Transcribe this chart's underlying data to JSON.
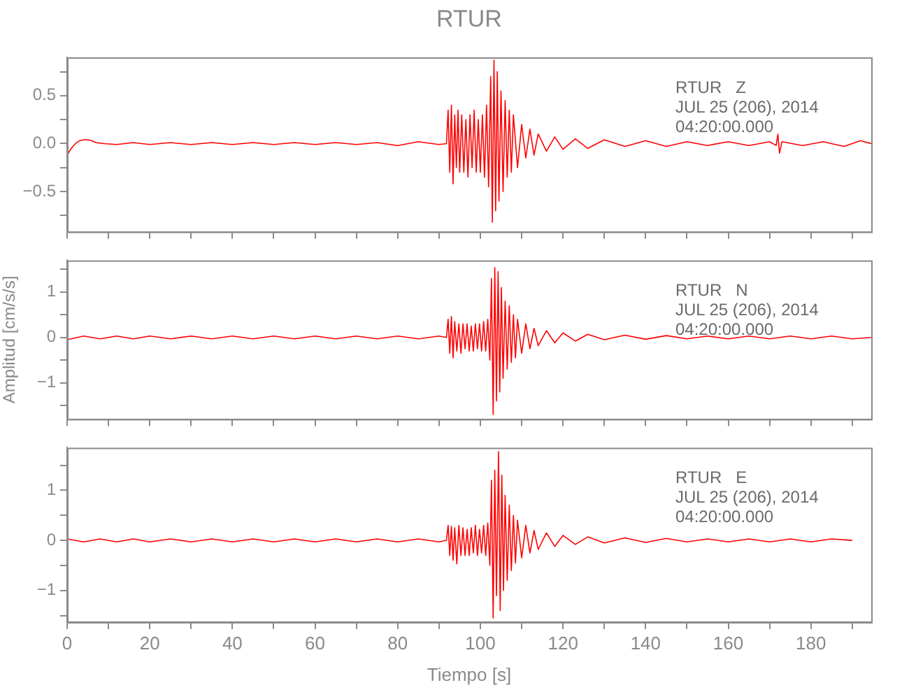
{
  "chart_data": [
    {
      "type": "line",
      "title": "RTUR",
      "color": "#ff0000",
      "grid": false,
      "legend": false,
      "tick_labels": "y",
      "xlim": [
        0,
        194.6
      ],
      "ylim": [
        -0.92,
        0.9
      ],
      "xticks": [
        {
          "value": 0,
          "label": null
        },
        {
          "value": 10,
          "label": null
        },
        {
          "value": 20,
          "label": null
        },
        {
          "value": 30,
          "label": null
        },
        {
          "value": 40,
          "label": null
        },
        {
          "value": 50,
          "label": null
        },
        {
          "value": 60,
          "label": null
        },
        {
          "value": 70,
          "label": null
        },
        {
          "value": 80,
          "label": null
        },
        {
          "value": 90,
          "label": null
        },
        {
          "value": 100,
          "label": null
        },
        {
          "value": 110,
          "label": null
        },
        {
          "value": 120,
          "label": null
        },
        {
          "value": 130,
          "label": null
        },
        {
          "value": 140,
          "label": null
        },
        {
          "value": 150,
          "label": null
        },
        {
          "value": 160,
          "label": null
        },
        {
          "value": 170,
          "label": null
        },
        {
          "value": 180,
          "label": null
        },
        {
          "value": 190,
          "label": null
        }
      ],
      "yticks": [
        {
          "value": -0.75,
          "label": null
        },
        {
          "value": -0.5,
          "label": "−0.5"
        },
        {
          "value": -0.25,
          "label": null
        },
        {
          "value": 0,
          "label": "0.0"
        },
        {
          "value": 0.25,
          "label": null
        },
        {
          "value": 0.5,
          "label": "0.5"
        },
        {
          "value": 0.75,
          "label": null
        }
      ],
      "annotations": [
        "RTUR   Z",
        "JUL 25 (206), 2014",
        "04:20:00.000"
      ],
      "x": [
        0,
        1,
        2,
        3,
        4,
        5,
        6,
        7,
        9,
        12,
        16,
        20,
        25,
        30,
        35,
        40,
        45,
        50,
        55,
        60,
        65,
        70,
        75,
        80,
        85,
        90,
        91.8,
        92.2,
        92.6,
        93,
        93.4,
        93.8,
        94.2,
        94.6,
        95,
        95.5,
        96,
        96.5,
        97,
        97.5,
        98,
        98.5,
        99,
        99.5,
        100,
        100.5,
        101,
        101.5,
        102,
        102.5,
        102.9,
        103.3,
        103.7,
        104.1,
        104.5,
        105,
        105.5,
        106,
        106.5,
        107,
        107.5,
        108,
        109,
        110,
        111,
        112,
        113,
        114,
        116,
        118,
        120,
        123,
        126,
        130,
        135,
        140,
        145,
        150,
        155,
        160,
        165,
        170,
        171.6,
        172,
        172.4,
        173,
        178,
        183,
        188,
        192,
        194.6
      ],
      "values": [
        -0.12,
        -0.05,
        0,
        0.03,
        0.04,
        0.04,
        0.03,
        0.01,
        0,
        -0.01,
        0.01,
        -0.01,
        0.01,
        -0.01,
        0.01,
        -0.01,
        0.01,
        -0.01,
        0.01,
        -0.01,
        0.01,
        -0.01,
        0.01,
        -0.02,
        0.02,
        -0.01,
        0,
        0.35,
        -0.3,
        0.4,
        -0.42,
        0.3,
        -0.25,
        0.35,
        -0.3,
        0.3,
        -0.3,
        0.25,
        -0.35,
        0.3,
        -0.25,
        0.35,
        -0.3,
        0.25,
        -0.3,
        0.3,
        -0.35,
        0.4,
        -0.45,
        0.7,
        -0.82,
        0.87,
        -0.7,
        0.75,
        -0.6,
        0.55,
        -0.5,
        0.45,
        -0.35,
        0.35,
        -0.3,
        0.3,
        -0.25,
        0.2,
        -0.15,
        0.15,
        -0.12,
        0.1,
        -0.08,
        0.07,
        -0.06,
        0.05,
        -0.05,
        0.04,
        -0.03,
        0.03,
        -0.03,
        0.02,
        -0.02,
        0.02,
        -0.02,
        0.02,
        -0.02,
        0.1,
        -0.1,
        0.02,
        -0.02,
        0.02,
        -0.03,
        0.03,
        0
      ]
    },
    {
      "type": "line",
      "ylabel": "Amplitud [cm/s/s]",
      "color": "#ff0000",
      "grid": false,
      "legend": false,
      "tick_labels": "y",
      "xlim": [
        0,
        194.6
      ],
      "ylim": [
        -1.8,
        1.7
      ],
      "xticks": [
        {
          "value": 0,
          "label": null
        },
        {
          "value": 10,
          "label": null
        },
        {
          "value": 20,
          "label": null
        },
        {
          "value": 30,
          "label": null
        },
        {
          "value": 40,
          "label": null
        },
        {
          "value": 50,
          "label": null
        },
        {
          "value": 60,
          "label": null
        },
        {
          "value": 70,
          "label": null
        },
        {
          "value": 80,
          "label": null
        },
        {
          "value": 90,
          "label": null
        },
        {
          "value": 100,
          "label": null
        },
        {
          "value": 110,
          "label": null
        },
        {
          "value": 120,
          "label": null
        },
        {
          "value": 130,
          "label": null
        },
        {
          "value": 140,
          "label": null
        },
        {
          "value": 150,
          "label": null
        },
        {
          "value": 160,
          "label": null
        },
        {
          "value": 170,
          "label": null
        },
        {
          "value": 180,
          "label": null
        },
        {
          "value": 190,
          "label": null
        }
      ],
      "yticks": [
        {
          "value": -1.5,
          "label": null
        },
        {
          "value": -1,
          "label": "−1"
        },
        {
          "value": -0.5,
          "label": null
        },
        {
          "value": 0,
          "label": "0"
        },
        {
          "value": 0.5,
          "label": null
        },
        {
          "value": 1,
          "label": "1"
        },
        {
          "value": 1.5,
          "label": null
        }
      ],
      "annotations": [
        "RTUR   N",
        "JUL 25 (206), 2014",
        "04:20:00.000"
      ],
      "x": [
        0,
        4,
        8,
        12,
        16,
        20,
        25,
        30,
        35,
        40,
        45,
        50,
        55,
        60,
        65,
        70,
        75,
        80,
        85,
        90,
        91.8,
        92.2,
        92.6,
        93,
        93.4,
        93.8,
        94.3,
        94.8,
        95.3,
        95.8,
        96.3,
        96.8,
        97.3,
        97.8,
        98.3,
        98.8,
        99.3,
        99.8,
        100.3,
        100.8,
        101.3,
        101.8,
        102.3,
        102.7,
        103.1,
        103.5,
        103.9,
        104.3,
        104.7,
        105.1,
        105.5,
        106,
        106.5,
        107,
        107.5,
        108,
        108.5,
        109,
        110,
        111,
        112,
        113,
        114,
        116,
        118,
        120,
        123,
        126,
        130,
        135,
        140,
        145,
        150,
        155,
        160,
        165,
        170,
        175,
        180,
        185,
        190,
        194.6
      ],
      "values": [
        -0.05,
        0.03,
        -0.03,
        0.03,
        -0.03,
        0.03,
        -0.03,
        0.03,
        -0.03,
        0.03,
        -0.03,
        0.03,
        -0.03,
        0.03,
        -0.03,
        0.03,
        -0.03,
        0.03,
        -0.03,
        0.03,
        0,
        0.4,
        -0.35,
        0.46,
        -0.45,
        0.35,
        -0.3,
        0.3,
        -0.35,
        0.3,
        -0.25,
        0.3,
        -0.3,
        0.25,
        -0.3,
        0.3,
        -0.25,
        0.3,
        -0.3,
        0.35,
        -0.3,
        0.4,
        -0.5,
        1.3,
        -1.7,
        1.54,
        -1.4,
        1.45,
        -1.2,
        1.1,
        -0.9,
        0.8,
        -0.7,
        0.7,
        -0.55,
        0.5,
        -0.45,
        0.4,
        -0.35,
        0.3,
        -0.25,
        0.2,
        -0.18,
        0.15,
        -0.12,
        0.1,
        -0.08,
        0.07,
        -0.05,
        0.05,
        -0.04,
        0.04,
        -0.03,
        0.03,
        -0.03,
        0.03,
        -0.03,
        0.03,
        -0.03,
        0.03,
        -0.03,
        0
      ]
    },
    {
      "type": "line",
      "xlabel": "Tiempo [s]",
      "color": "#ff0000",
      "grid": false,
      "legend": false,
      "xlim": [
        0,
        194.6
      ],
      "ylim": [
        -1.63,
        1.85
      ],
      "xticks": [
        0,
        {
          "value": 10,
          "label": null
        },
        20,
        {
          "value": 30,
          "label": null
        },
        40,
        {
          "value": 50,
          "label": null
        },
        60,
        {
          "value": 70,
          "label": null
        },
        80,
        {
          "value": 90,
          "label": null
        },
        100,
        {
          "value": 110,
          "label": null
        },
        120,
        {
          "value": 130,
          "label": null
        },
        140,
        {
          "value": 150,
          "label": null
        },
        160,
        {
          "value": 170,
          "label": null
        },
        180,
        {
          "value": 190,
          "label": null
        }
      ],
      "yticks": [
        {
          "value": -1.5,
          "label": null
        },
        {
          "value": -1,
          "label": "−1"
        },
        {
          "value": -0.5,
          "label": null
        },
        {
          "value": 0,
          "label": "0"
        },
        {
          "value": 0.5,
          "label": null
        },
        {
          "value": 1,
          "label": "1"
        },
        {
          "value": 1.5,
          "label": null
        }
      ],
      "annotations": [
        "RTUR   E",
        "JUL 25 (206), 2014",
        "04:20:00.000"
      ],
      "x": [
        0,
        4,
        8,
        12,
        16,
        20,
        25,
        30,
        35,
        40,
        45,
        50,
        55,
        60,
        65,
        70,
        75,
        80,
        85,
        90,
        91.8,
        92.2,
        92.6,
        93,
        93.4,
        93.8,
        94.3,
        94.8,
        95.3,
        95.8,
        96.3,
        96.8,
        97.3,
        97.8,
        98.3,
        98.8,
        99.3,
        99.8,
        100.3,
        100.8,
        101.3,
        101.8,
        102.3,
        102.7,
        103.1,
        103.5,
        103.9,
        104.4,
        104.8,
        105.2,
        105.6,
        106,
        106.5,
        107,
        107.5,
        108,
        108.5,
        109,
        110,
        111,
        112,
        113,
        114,
        116,
        118,
        120,
        123,
        126,
        130,
        135,
        140,
        145,
        150,
        155,
        160,
        165,
        170,
        175,
        180,
        185,
        190
      ],
      "values": [
        0.03,
        -0.03,
        0.03,
        -0.03,
        0.03,
        -0.03,
        0.03,
        -0.03,
        0.03,
        -0.03,
        0.03,
        -0.03,
        0.03,
        -0.03,
        0.03,
        -0.03,
        0.03,
        -0.03,
        0.03,
        -0.03,
        0,
        0.3,
        -0.3,
        0.28,
        -0.4,
        0.25,
        -0.47,
        0.3,
        -0.3,
        0.25,
        -0.3,
        0.22,
        -0.3,
        0.25,
        -0.25,
        0.3,
        -0.3,
        0.22,
        -0.25,
        0.3,
        -0.3,
        0.35,
        -0.5,
        1.2,
        -1.55,
        1.4,
        -1.1,
        1.77,
        -1.4,
        1.3,
        -1.0,
        0.9,
        -0.8,
        0.7,
        -0.6,
        0.5,
        -0.45,
        0.4,
        -0.35,
        0.3,
        -0.25,
        0.2,
        -0.18,
        0.15,
        -0.12,
        0.1,
        -0.08,
        0.07,
        -0.05,
        0.05,
        -0.04,
        0.04,
        -0.03,
        0.03,
        -0.03,
        0.03,
        -0.03,
        0.03,
        -0.03,
        0.03,
        0
      ]
    }
  ]
}
